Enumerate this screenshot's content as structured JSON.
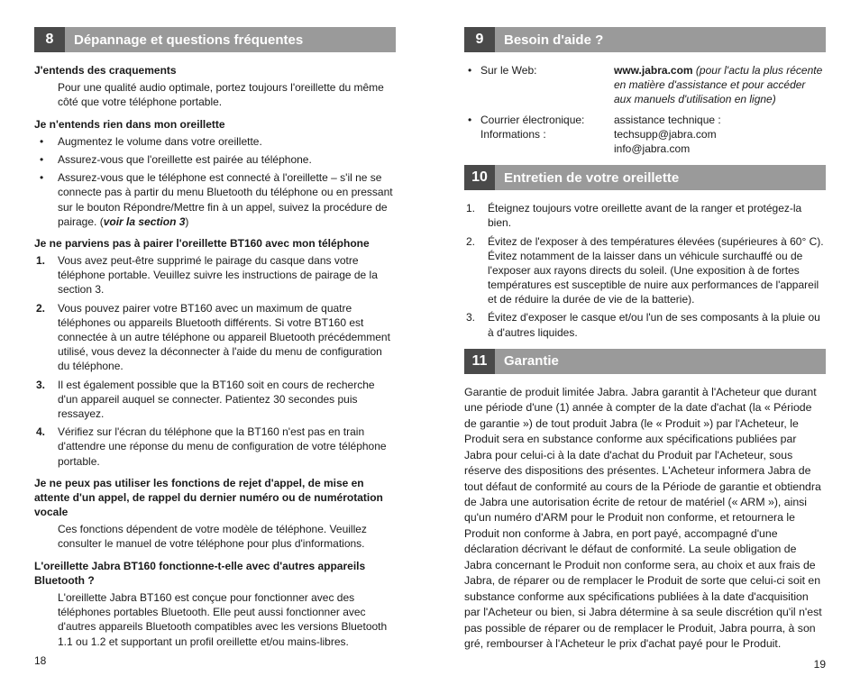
{
  "left": {
    "section": {
      "num": "8",
      "title": "Dépannage et questions fréquentes"
    },
    "q1": {
      "head": "J'entends des craquements",
      "body": "Pour une qualité audio optimale, portez toujours l'oreillette du même côté que votre téléphone portable."
    },
    "q2": {
      "head": "Je n'entends rien dans mon oreillette",
      "b1": "Augmentez le volume dans votre oreillette.",
      "b2": "Assurez-vous que l'oreillette est pairée au téléphone.",
      "b3a": "Assurez-vous que le téléphone est connecté à l'oreillette – s'il ne se connecte pas à partir du menu Bluetooth du téléphone ou en pressant sur le bouton Répondre/Mettre fin à un appel, suivez la procédure de pairage. (",
      "b3b": "voir la section 3",
      "b3c": ")"
    },
    "q3": {
      "head": "Je ne parviens pas à pairer l'oreillette BT160 avec mon téléphone",
      "n1": "Vous avez peut-être supprimé le pairage du casque dans votre téléphone portable. Veuillez suivre les instructions de pairage de la section 3.",
      "n2": "Vous pouvez pairer votre BT160 avec un maximum de quatre téléphones ou appareils Bluetooth différents. Si votre BT160 est connectée à un autre téléphone ou appareil Bluetooth précédemment utilisé, vous devez la déconnecter à l'aide du menu de configuration du téléphone.",
      "n3": "Il est également possible que la BT160 soit en cours de recherche d'un appareil auquel se connecter. Patientez 30 secondes puis ressayez.",
      "n4": "Vérifiez sur l'écran du téléphone que la BT160 n'est pas en train d'attendre une réponse du menu de configuration de votre téléphone portable."
    },
    "q4": {
      "head": "Je ne peux pas utiliser les fonctions de rejet d'appel, de mise en attente d'un appel, de rappel du dernier numéro ou de numérotation vocale",
      "body": "Ces fonctions dépendent de votre modèle de téléphone. Veuillez consulter le manuel de votre téléphone pour plus d'informations."
    },
    "q5": {
      "head": "L'oreillette Jabra BT160 fonctionne-t-elle avec d'autres appareils Bluetooth ?",
      "body": "L'oreillette Jabra BT160 est conçue pour fonctionner avec des téléphones portables Bluetooth. Elle peut aussi fonctionner avec d'autres appareils Bluetooth compatibles avec les versions Bluetooth 1.1 ou 1.2 et supportant un profil oreillette et/ou mains-libres."
    },
    "pagenum": "18"
  },
  "right": {
    "s9": {
      "num": "9",
      "title": "Besoin d'aide ?"
    },
    "help": {
      "web_label": "Sur le Web:",
      "web_val_a": "www.jabra.com ",
      "web_val_b": "(pour l'actu la plus récente en matière d'assistance et pour accéder aux manuels d'utilisation en ligne)",
      "mail_label_a": "Courrier électronique:",
      "mail_label_b": "Informations :",
      "mail_val_a": "assistance technique : techsupp@jabra.com",
      "mail_val_b": "info@jabra.com"
    },
    "s10": {
      "num": "10",
      "title": "Entretien de votre oreillette"
    },
    "care": {
      "n1": "Éteignez toujours votre oreillette avant de la ranger et protégez-la bien.",
      "n2": "Évitez de l'exposer à des températures élevées (supérieures à 60° C). Évitez notamment de la laisser dans un véhicule surchauffé ou de l'exposer aux rayons directs du soleil. (Une exposition à de fortes températures est susceptible de nuire aux performances de l'appareil et de réduire la durée de vie de la batterie).",
      "n3": "Évitez d'exposer le casque et/ou l'un de ses composants à la pluie ou à d'autres liquides."
    },
    "s11": {
      "num": "11",
      "title": "Garantie"
    },
    "warranty": "Garantie de produit limitée Jabra. Jabra garantit à l'Acheteur que durant une période d'une (1) année à compter de la date d'achat (la « Période de garantie ») de tout produit Jabra (le « Produit ») par l'Acheteur, le Produit sera en substance conforme aux spécifications publiées par Jabra pour celui-ci à la date d'achat du Produit par l'Acheteur, sous réserve des dispositions des présentes. L'Acheteur informera Jabra de tout défaut de conformité au cours de la Période de garantie et obtiendra de Jabra une autorisation écrite de retour de matériel (« ARM »), ainsi qu'un numéro d'ARM pour le Produit non conforme, et retournera le Produit non conforme à Jabra, en port payé, accompagné d'une déclaration décrivant le défaut de conformité. La seule obligation de Jabra concernant le Produit non conforme sera, au choix et aux frais de Jabra, de réparer ou de remplacer le Produit de sorte que celui-ci soit en substance conforme aux spécifications publiées à la date d'acquisition par l'Acheteur ou bien, si Jabra détermine à sa seule discrétion qu'il n'est pas possible de réparer ou de remplacer le Produit, Jabra pourra, à son gré, rembourser à l'Acheteur le prix d'achat payé pour le Produit.",
    "pagenum": "19"
  }
}
